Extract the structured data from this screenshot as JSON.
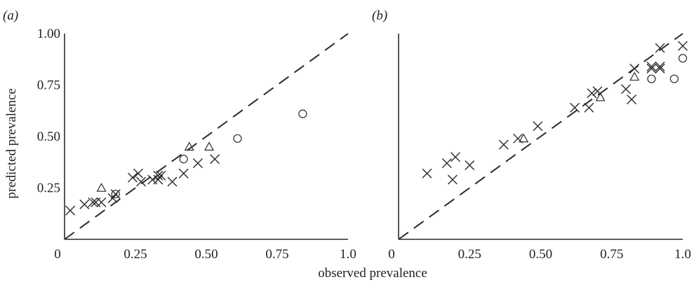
{
  "figure": {
    "shared_xlabel": "observed prevalence",
    "shared_ylabel": "predicted prevalence"
  },
  "chart_data": [
    {
      "type": "scatter",
      "panel_label": "(a)",
      "xlim": [
        0,
        1.0
      ],
      "ylim": [
        0,
        1.0
      ],
      "x_ticks": [
        "0",
        "0.25",
        "0.50",
        "0.75",
        "1.0"
      ],
      "y_ticks": [
        "0.25",
        "0.50",
        "0.75",
        "1.00"
      ],
      "reference_line": "dashed y = x",
      "series": [
        {
          "marker": "cross",
          "points": [
            [
              0.02,
              0.14
            ],
            [
              0.07,
              0.17
            ],
            [
              0.1,
              0.18
            ],
            [
              0.11,
              0.18
            ],
            [
              0.13,
              0.18
            ],
            [
              0.17,
              0.2
            ],
            [
              0.18,
              0.22
            ],
            [
              0.24,
              0.3
            ],
            [
              0.26,
              0.32
            ],
            [
              0.27,
              0.28
            ],
            [
              0.31,
              0.29
            ],
            [
              0.33,
              0.29
            ],
            [
              0.33,
              0.31
            ],
            [
              0.34,
              0.31
            ],
            [
              0.38,
              0.28
            ],
            [
              0.42,
              0.32
            ],
            [
              0.47,
              0.37
            ],
            [
              0.53,
              0.39
            ]
          ]
        },
        {
          "marker": "triangle",
          "points": [
            [
              0.13,
              0.25
            ],
            [
              0.44,
              0.45
            ],
            [
              0.51,
              0.45
            ]
          ]
        },
        {
          "marker": "circle",
          "points": [
            [
              0.18,
              0.22
            ],
            [
              0.42,
              0.39
            ],
            [
              0.61,
              0.49
            ],
            [
              0.84,
              0.61
            ]
          ]
        }
      ]
    },
    {
      "type": "scatter",
      "panel_label": "(b)",
      "xlim": [
        0,
        1.0
      ],
      "ylim": [
        0,
        1.0
      ],
      "x_ticks": [
        "0",
        "0.25",
        "0.50",
        "0.75",
        "1.0"
      ],
      "y_ticks": [],
      "reference_line": "dashed y = x",
      "series": [
        {
          "marker": "cross",
          "points": [
            [
              0.1,
              0.32
            ],
            [
              0.17,
              0.37
            ],
            [
              0.2,
              0.4
            ],
            [
              0.19,
              0.29
            ],
            [
              0.25,
              0.36
            ],
            [
              0.37,
              0.46
            ],
            [
              0.42,
              0.49
            ],
            [
              0.49,
              0.55
            ],
            [
              0.62,
              0.64
            ],
            [
              0.67,
              0.64
            ],
            [
              0.68,
              0.71
            ],
            [
              0.7,
              0.72
            ],
            [
              0.8,
              0.73
            ],
            [
              0.82,
              0.68
            ],
            [
              0.83,
              0.83
            ],
            [
              0.89,
              0.83
            ],
            [
              0.89,
              0.84
            ],
            [
              0.92,
              0.84
            ],
            [
              0.92,
              0.83
            ],
            [
              0.92,
              0.93
            ],
            [
              1.0,
              0.94
            ]
          ]
        },
        {
          "marker": "triangle",
          "points": [
            [
              0.44,
              0.49
            ],
            [
              0.71,
              0.69
            ],
            [
              0.83,
              0.79
            ]
          ]
        },
        {
          "marker": "circle",
          "points": [
            [
              0.89,
              0.78
            ],
            [
              0.97,
              0.78
            ],
            [
              1.0,
              0.88
            ]
          ]
        }
      ]
    }
  ]
}
